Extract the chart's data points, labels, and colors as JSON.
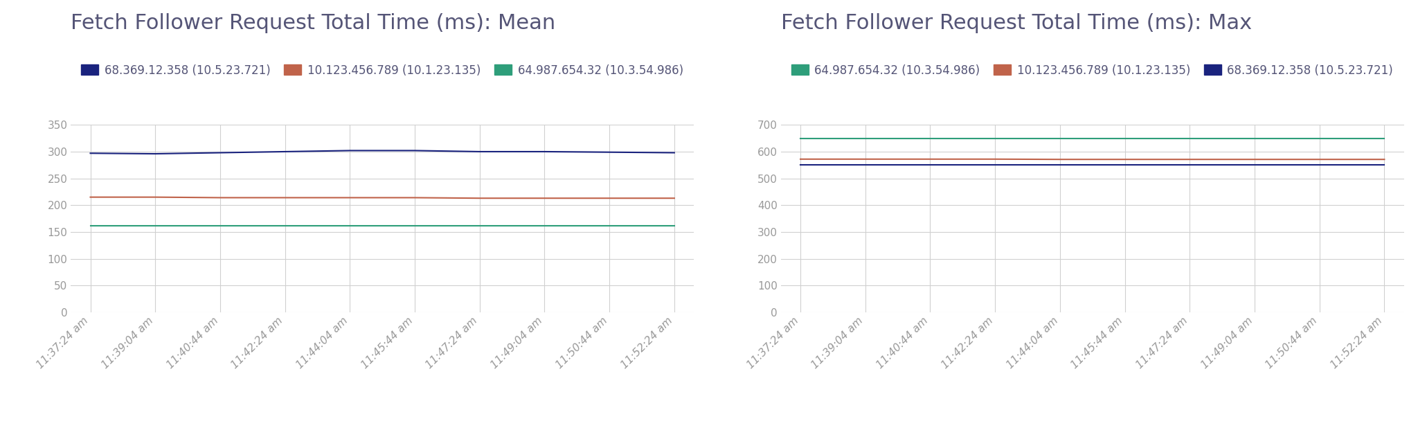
{
  "title_mean": "Fetch Follower Request Total Time (ms): Mean",
  "title_max": "Fetch Follower Request Total Time (ms): Max",
  "x_labels": [
    "11:37:24 am",
    "11:39:04 am",
    "11:40:44 am",
    "11:42:24 am",
    "11:44:04 am",
    "11:45:44 am",
    "11:47:24 am",
    "11:49:04 am",
    "11:50:44 am",
    "11:52:24 am"
  ],
  "mean": {
    "series": [
      {
        "label": "68.369.12.358 (10.5.23.721)",
        "color": "#1a237e",
        "values": [
          297,
          296,
          298,
          300,
          302,
          302,
          300,
          300,
          299,
          298
        ]
      },
      {
        "label": "10.123.456.789 (10.1.23.135)",
        "color": "#c0634a",
        "values": [
          215,
          215,
          214,
          214,
          214,
          214,
          213,
          213,
          213,
          213
        ]
      },
      {
        "label": "64.987.654.32 (10.3.54.986)",
        "color": "#2e9e7a",
        "values": [
          162,
          162,
          162,
          162,
          162,
          162,
          162,
          162,
          162,
          162
        ]
      }
    ],
    "ylim": [
      0,
      350
    ],
    "yticks": [
      0,
      50,
      100,
      150,
      200,
      250,
      300,
      350
    ]
  },
  "max": {
    "series": [
      {
        "label": "64.987.654.32 (10.3.54.986)",
        "color": "#2e9e7a",
        "values": [
          648,
          648,
          648,
          648,
          648,
          648,
          648,
          648,
          648,
          648
        ]
      },
      {
        "label": "10.123.456.789 (10.1.23.135)",
        "color": "#c0634a",
        "values": [
          572,
          572,
          572,
          572,
          571,
          571,
          571,
          571,
          571,
          571
        ]
      },
      {
        "label": "68.369.12.358 (10.5.23.721)",
        "color": "#1a237e",
        "values": [
          551,
          551,
          551,
          551,
          551,
          551,
          551,
          551,
          551,
          551
        ]
      }
    ],
    "ylim": [
      0,
      700
    ],
    "yticks": [
      0,
      100,
      200,
      300,
      400,
      500,
      600,
      700
    ]
  },
  "background_color": "#ffffff",
  "grid_color": "#d0d0d0",
  "title_color": "#555577",
  "tick_color": "#999999",
  "title_fontsize": 22,
  "legend_fontsize": 12,
  "tick_fontsize": 11
}
